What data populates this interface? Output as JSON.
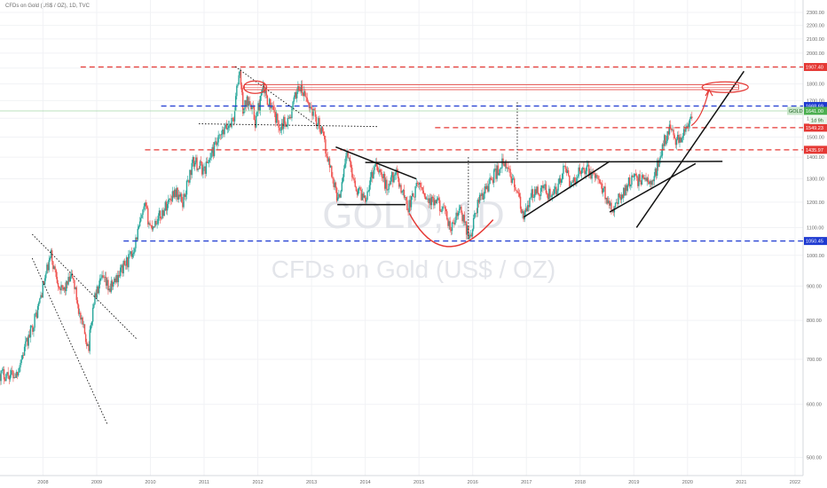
{
  "header": {
    "symbol_title": "CFDs on Gold (US$ / OZ), 1D, TVC"
  },
  "watermark": {
    "line1": "GOLD, 1D",
    "line2": "CFDs on Gold (US$ / OZ)"
  },
  "colors": {
    "up": "#26a69a",
    "down": "#ef5350",
    "red_dash": "#e53935",
    "blue_dash": "#1e3ad1",
    "axis_text": "#6b6b6b",
    "grid": "#f1f2f5",
    "green_tag": "#4caf50"
  },
  "chart_data": {
    "type": "candlestick",
    "title": "CFDs on Gold (US$ / OZ), 1D, TVC",
    "ylim": [
      470,
      2400
    ],
    "xlim": [
      2007.2,
      2022.15
    ],
    "y_ticks": [
      500,
      600,
      700,
      800,
      900,
      1000,
      1100,
      1200,
      1300,
      1400,
      1500,
      1600,
      1700,
      1800,
      1900,
      2000,
      2100,
      2200,
      2300
    ],
    "y_tick_labels": [
      "500.00",
      "600.00",
      "700.00",
      "800.00",
      "900.00",
      "1000.00",
      "1100.00",
      "1200.00",
      "1300.00",
      "1400.00",
      "1500.00",
      "1600.00",
      "1700.00",
      "1800.00",
      "1900.00",
      "2000.00",
      "2100.00",
      "2200.00",
      "2300.00"
    ],
    "x_ticks": [
      2008,
      2009,
      2010,
      2011,
      2012,
      2013,
      2014,
      2015,
      2016,
      2017,
      2018,
      2019,
      2020,
      2021,
      2022
    ],
    "x_tick_labels": [
      "2008",
      "2009",
      "2010",
      "2011",
      "2012",
      "2013",
      "2014",
      "2015",
      "2016",
      "2017",
      "2018",
      "2019",
      "2020",
      "2021",
      "2022"
    ],
    "price_path": [
      [
        2007.2,
        665
      ],
      [
        2007.5,
        665
      ],
      [
        2007.75,
        760
      ],
      [
        2007.9,
        830
      ],
      [
        2008.15,
        1000
      ],
      [
        2008.2,
        960
      ],
      [
        2008.35,
        880
      ],
      [
        2008.55,
        930
      ],
      [
        2008.7,
        800
      ],
      [
        2008.85,
        730
      ],
      [
        2008.95,
        860
      ],
      [
        2009.1,
        920
      ],
      [
        2009.25,
        890
      ],
      [
        2009.45,
        950
      ],
      [
        2009.65,
        1000
      ],
      [
        2009.9,
        1180
      ],
      [
        2010.0,
        1100
      ],
      [
        2010.2,
        1150
      ],
      [
        2010.45,
        1250
      ],
      [
        2010.6,
        1200
      ],
      [
        2010.8,
        1380
      ],
      [
        2011.0,
        1340
      ],
      [
        2011.2,
        1450
      ],
      [
        2011.4,
        1540
      ],
      [
        2011.55,
        1600
      ],
      [
        2011.66,
        1900
      ],
      [
        2011.72,
        1650
      ],
      [
        2011.85,
        1720
      ],
      [
        2011.95,
        1580
      ],
      [
        2012.1,
        1770
      ],
      [
        2012.3,
        1620
      ],
      [
        2012.4,
        1560
      ],
      [
        2012.6,
        1600
      ],
      [
        2012.75,
        1790
      ],
      [
        2012.95,
        1680
      ],
      [
        2013.15,
        1560
      ],
      [
        2013.3,
        1400
      ],
      [
        2013.5,
        1200
      ],
      [
        2013.65,
        1420
      ],
      [
        2013.85,
        1250
      ],
      [
        2014.0,
        1220
      ],
      [
        2014.2,
        1380
      ],
      [
        2014.4,
        1260
      ],
      [
        2014.55,
        1330
      ],
      [
        2014.8,
        1180
      ],
      [
        2015.0,
        1280
      ],
      [
        2015.2,
        1200
      ],
      [
        2015.4,
        1190
      ],
      [
        2015.6,
        1090
      ],
      [
        2015.75,
        1170
      ],
      [
        2015.95,
        1060
      ],
      [
        2016.1,
        1200
      ],
      [
        2016.3,
        1280
      ],
      [
        2016.55,
        1370
      ],
      [
        2016.75,
        1300
      ],
      [
        2016.95,
        1130
      ],
      [
        2017.1,
        1230
      ],
      [
        2017.3,
        1260
      ],
      [
        2017.5,
        1220
      ],
      [
        2017.7,
        1340
      ],
      [
        2017.85,
        1270
      ],
      [
        2018.05,
        1360
      ],
      [
        2018.3,
        1300
      ],
      [
        2018.6,
        1180
      ],
      [
        2018.75,
        1220
      ],
      [
        2018.9,
        1290
      ],
      [
        2019.15,
        1300
      ],
      [
        2019.35,
        1280
      ],
      [
        2019.5,
        1420
      ],
      [
        2019.65,
        1550
      ],
      [
        2019.8,
        1480
      ],
      [
        2019.95,
        1520
      ],
      [
        2020.05,
        1580
      ],
      [
        2020.1,
        1640
      ]
    ],
    "horizontal_levels": [
      {
        "value": 1907.4,
        "label": "1907.40",
        "style": "red-dash",
        "x_start": 2008.7
      },
      {
        "value": 1668.69,
        "label": "1668.69",
        "style": "blue-dash",
        "x_start": 2010.2
      },
      {
        "value": 1549.23,
        "label": "1549.23",
        "style": "red-dash",
        "x_start": 2015.3
      },
      {
        "value": 1435.97,
        "label": "1435.97",
        "style": "red-dash",
        "x_start": 2009.9
      },
      {
        "value": 1050.45,
        "label": "1050.45",
        "style": "blue-dash",
        "x_start": 2009.5
      }
    ],
    "price_tags": [
      {
        "label": "GOLD",
        "value": "1641.00",
        "sub": "1d 9h"
      }
    ],
    "trendlines": [
      {
        "style": "black",
        "points": [
          [
            2013.48,
            1190
          ],
          [
            2014.75,
            1190
          ]
        ]
      },
      {
        "style": "black",
        "points": [
          [
            2013.45,
            1450
          ],
          [
            2014.95,
            1300
          ]
        ]
      },
      {
        "style": "black",
        "points": [
          [
            2014.0,
            1375
          ],
          [
            2020.65,
            1380
          ]
        ]
      },
      {
        "style": "black",
        "points": [
          [
            2016.95,
            1140
          ],
          [
            2018.55,
            1380
          ]
        ]
      },
      {
        "style": "black",
        "points": [
          [
            2018.55,
            1160
          ],
          [
            2020.15,
            1370
          ]
        ]
      },
      {
        "style": "black",
        "points": [
          [
            2019.05,
            1100
          ],
          [
            2021.05,
            1880
          ]
        ]
      },
      {
        "style": "dotted",
        "points": [
          [
            2011.58,
            1910
          ],
          [
            2013.1,
            1560
          ]
        ]
      },
      {
        "style": "dotted",
        "points": [
          [
            2010.9,
            1570
          ],
          [
            2014.25,
            1555
          ]
        ]
      },
      {
        "style": "dotted",
        "points": [
          [
            2007.8,
            1075
          ],
          [
            2009.75,
            750
          ]
        ]
      },
      {
        "style": "dotted",
        "points": [
          [
            2007.8,
            990
          ],
          [
            2009.2,
            560
          ]
        ]
      },
      {
        "style": "dotted",
        "points": [
          [
            2015.92,
            1400
          ],
          [
            2015.92,
            1050
          ]
        ]
      },
      {
        "style": "dotted",
        "points": [
          [
            2016.83,
            1690
          ],
          [
            2016.83,
            1380
          ]
        ]
      }
    ]
  }
}
